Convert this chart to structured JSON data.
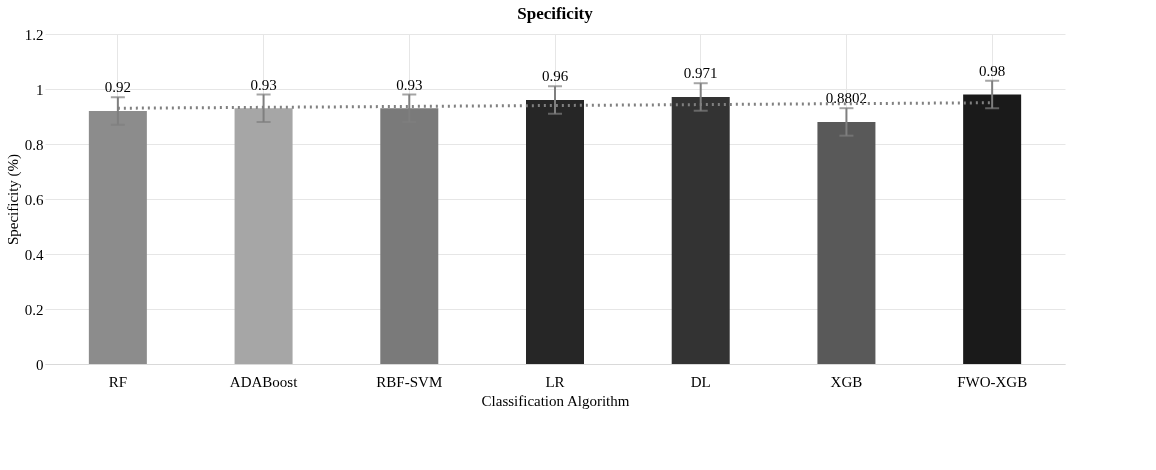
{
  "chart_data": {
    "type": "bar",
    "title": "Specificity",
    "xlabel": "Classification Algorithm",
    "ylabel": "Specificity (%)",
    "categories": [
      "RF",
      "ADABoost",
      "RBF-SVM",
      "LR",
      "DL",
      "XGB",
      "FWO-XGB"
    ],
    "series": [
      {
        "values": [
          0.92,
          0.93,
          0.93,
          0.96,
          0.971,
          0.8802,
          0.98
        ],
        "colors": [
          "#8c8c8c",
          "#a6a6a6",
          "#7a7a7a",
          "#262626",
          "#333333",
          "#595959",
          "#1a1a1a"
        ],
        "errors": [
          0.05,
          0.05,
          0.05,
          0.05,
          0.05,
          0.05,
          0.05
        ],
        "value_labels": [
          "0.92",
          "0.93",
          "0.93",
          "0.96",
          "0.971",
          "0.8802",
          "0.98"
        ]
      },
      {
        "type": "line",
        "x": [
          "RF",
          "FWO-XGB"
        ],
        "values": [
          0.93,
          0.95
        ],
        "color": "#808080",
        "line_style": "dotted"
      }
    ],
    "ylim": [
      0,
      1.2
    ],
    "yticks": [
      0,
      0.2,
      0.4,
      0.6,
      0.8,
      1,
      1.2
    ],
    "grid": true
  }
}
